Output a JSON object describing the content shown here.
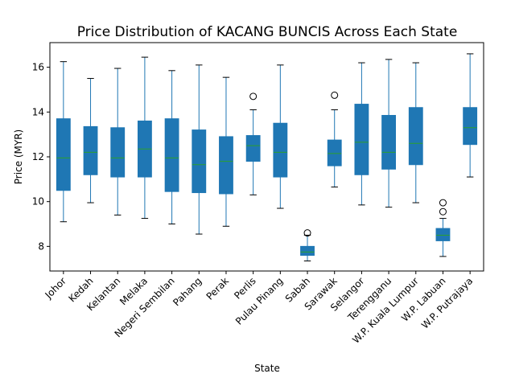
{
  "chart_data": {
    "type": "boxplot",
    "title": "Price Distribution of KACANG BUNCIS Across Each State",
    "xlabel": "State",
    "ylabel": "Price (MYR)",
    "ylim": [
      6.9,
      17.1
    ],
    "yticks": [
      8,
      10,
      12,
      14,
      16
    ],
    "grid": false,
    "colors": {
      "box": "#1f77b4",
      "median": "#2ca02c",
      "outlier_edge": "#000000"
    },
    "categories": [
      "Johor",
      "Kedah",
      "Kelantan",
      "Melaka",
      "Negeri Sembilan",
      "Pahang",
      "Perak",
      "Perlis",
      "Pulau Pinang",
      "Sabah",
      "Sarawak",
      "Selangor",
      "Terengganu",
      "W.P. Kuala Lumpur",
      "W.P. Labuan",
      "W.P. Putrajaya"
    ],
    "boxes": [
      {
        "whislo": 9.1,
        "q1": 10.5,
        "med": 11.95,
        "q3": 13.7,
        "whishi": 16.25,
        "fliers": []
      },
      {
        "whislo": 9.95,
        "q1": 11.2,
        "med": 12.2,
        "q3": 13.35,
        "whishi": 15.5,
        "fliers": []
      },
      {
        "whislo": 9.4,
        "q1": 11.1,
        "med": 11.95,
        "q3": 13.3,
        "whishi": 15.95,
        "fliers": []
      },
      {
        "whislo": 9.25,
        "q1": 11.1,
        "med": 12.35,
        "q3": 13.6,
        "whishi": 16.45,
        "fliers": []
      },
      {
        "whislo": 9.0,
        "q1": 10.45,
        "med": 11.95,
        "q3": 13.7,
        "whishi": 15.85,
        "fliers": []
      },
      {
        "whislo": 8.55,
        "q1": 10.4,
        "med": 11.65,
        "q3": 13.2,
        "whishi": 16.1,
        "fliers": []
      },
      {
        "whislo": 8.9,
        "q1": 10.35,
        "med": 11.8,
        "q3": 12.9,
        "whishi": 15.55,
        "fliers": []
      },
      {
        "whislo": 10.3,
        "q1": 11.8,
        "med": 12.5,
        "q3": 12.95,
        "whishi": 14.1,
        "fliers": [
          14.7
        ]
      },
      {
        "whislo": 9.7,
        "q1": 11.1,
        "med": 12.2,
        "q3": 13.5,
        "whishi": 16.1,
        "fliers": []
      },
      {
        "whislo": 7.35,
        "q1": 7.6,
        "med": 7.75,
        "q3": 8.0,
        "whishi": 8.5,
        "fliers": [
          8.6
        ]
      },
      {
        "whislo": 10.65,
        "q1": 11.6,
        "med": 12.15,
        "q3": 12.75,
        "whishi": 14.1,
        "fliers": [
          14.75
        ]
      },
      {
        "whislo": 9.85,
        "q1": 11.2,
        "med": 12.65,
        "q3": 14.35,
        "whishi": 16.2,
        "fliers": []
      },
      {
        "whislo": 9.75,
        "q1": 11.45,
        "med": 12.2,
        "q3": 13.85,
        "whishi": 16.35,
        "fliers": []
      },
      {
        "whislo": 9.95,
        "q1": 11.65,
        "med": 12.6,
        "q3": 14.2,
        "whishi": 16.2,
        "fliers": []
      },
      {
        "whislo": 7.55,
        "q1": 8.25,
        "med": 8.5,
        "q3": 8.8,
        "whishi": 9.25,
        "fliers": [
          9.55,
          9.95
        ]
      },
      {
        "whislo": 11.1,
        "q1": 12.55,
        "med": 13.3,
        "q3": 14.2,
        "whishi": 16.6,
        "fliers": []
      }
    ]
  }
}
